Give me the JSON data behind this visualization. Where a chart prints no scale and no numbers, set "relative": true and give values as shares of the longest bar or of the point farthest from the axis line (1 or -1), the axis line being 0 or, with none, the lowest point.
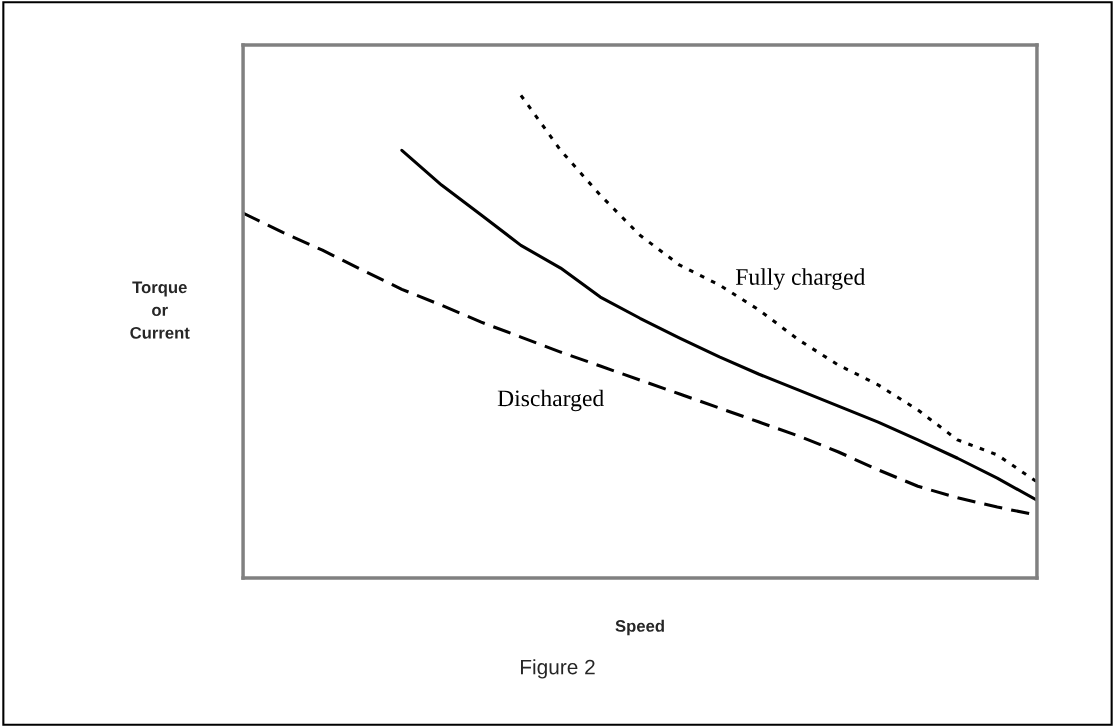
{
  "chart_data": {
    "type": "line",
    "relative": true,
    "xlabel": "Speed",
    "ylabel": "Torque\nor\nCurrent",
    "categories": [
      null,
      null,
      null,
      null,
      null,
      null,
      null,
      null,
      null,
      null,
      null,
      null,
      null,
      null,
      null,
      null,
      null,
      null,
      null,
      null,
      null
    ],
    "series": [
      {
        "name": "Fully charged",
        "color": "#000000",
        "line_style": "dotted",
        "values": [
          null,
          null,
          null,
          null,
          null,
          null,
          null,
          1.0,
          0.886,
          0.793,
          0.71,
          0.648,
          0.607,
          0.555,
          0.493,
          0.441,
          0.4,
          0.348,
          0.286,
          0.255,
          0.199
        ]
      },
      {
        "color": "#000000",
        "line_style": "solid",
        "values": [
          null,
          null,
          null,
          null,
          0.886,
          0.814,
          0.752,
          0.689,
          0.642,
          0.582,
          0.538,
          0.497,
          0.458,
          0.422,
          0.389,
          0.356,
          0.323,
          0.286,
          0.248,
          0.207,
          0.161
        ]
      },
      {
        "name": "Discharged",
        "color": "#000000",
        "line_style": "dashed",
        "values": [
          0.756,
          0.716,
          0.679,
          0.638,
          0.598,
          0.565,
          0.53,
          0.499,
          0.468,
          0.439,
          0.41,
          0.381,
          0.352,
          0.323,
          0.294,
          0.261,
          0.224,
          0.19,
          0.166,
          0.147,
          0.13
        ]
      }
    ],
    "legend": false,
    "annotations": [
      "Figure 2"
    ]
  }
}
